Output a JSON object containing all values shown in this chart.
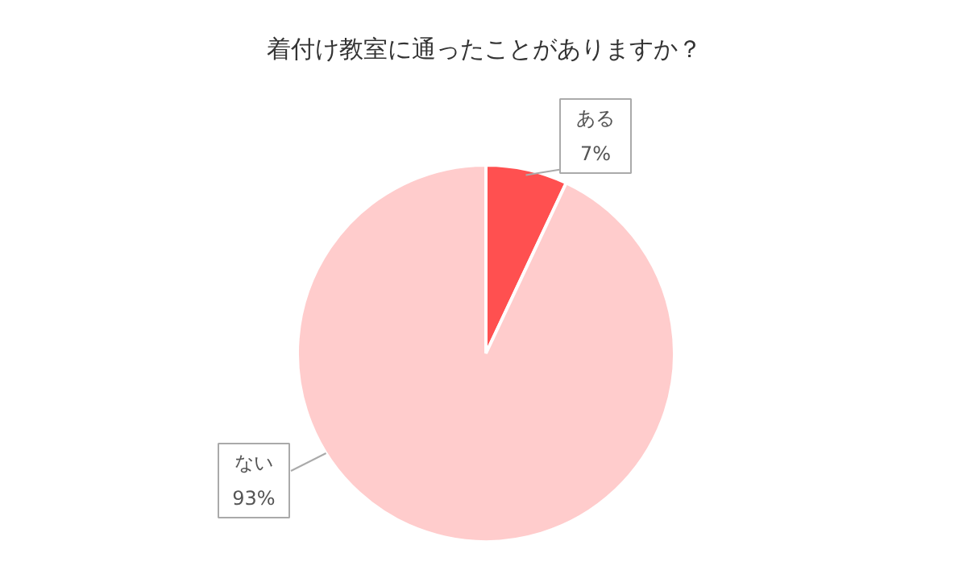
{
  "chart_data": {
    "type": "pie",
    "title": "着付け教室に通ったことがありますか？",
    "categories": [
      "ある",
      "ない"
    ],
    "values": [
      7,
      93
    ],
    "colors": [
      "#ff5050",
      "#ffcccc"
    ],
    "value_labels": [
      "7%",
      "93%"
    ]
  }
}
